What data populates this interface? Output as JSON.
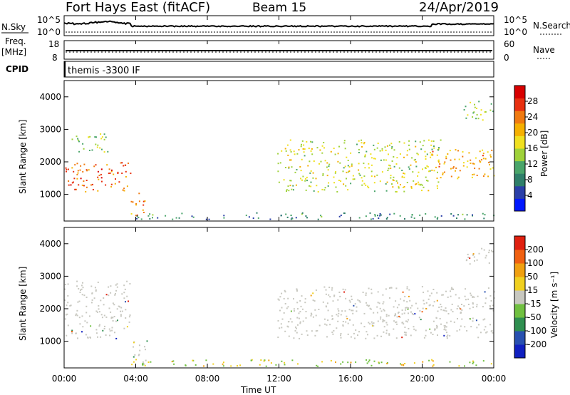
{
  "header": {
    "title": "Fort Hays East (fitACF)",
    "beam": "Beam 15",
    "date": "24/Apr/2019"
  },
  "nsky_panel": {
    "left_label": "N.Sky",
    "right_label": "N.Search",
    "left_ticks": [
      "10^5",
      "10^0"
    ],
    "right_ticks": [
      "10^5",
      "10^0"
    ]
  },
  "freq_panel": {
    "left_label_1": "Freq.",
    "left_label_2": "[MHz]",
    "right_label": "Nave",
    "left_ticks": [
      "18",
      "8"
    ],
    "right_ticks": [
      "60",
      "0"
    ]
  },
  "cpid_panel": {
    "label": "CPID",
    "program": "themis -3300 IF"
  },
  "x_axis": {
    "label": "Time UT",
    "ticks": [
      "00:00",
      "04:00",
      "08:00",
      "12:00",
      "16:00",
      "20:00",
      "00:00"
    ]
  },
  "power_panel": {
    "ylabel": "Slant Range [km]",
    "yticks": [
      "1000",
      "2000",
      "3000",
      "4000"
    ],
    "cbar_label": "Power [dB]",
    "cbar_ticks": [
      "4",
      "8",
      "12",
      "16",
      "20",
      "24",
      "28"
    ],
    "cbar_colors": [
      "#0018ff",
      "#2a3fa8",
      "#2f7f6a",
      "#4aa56a",
      "#9fd23a",
      "#f0e020",
      "#f5b000",
      "#f07a10",
      "#e83010",
      "#d80000"
    ]
  },
  "velocity_panel": {
    "ylabel": "Slant Range [km]",
    "yticks": [
      "1000",
      "2000",
      "3000",
      "4000"
    ],
    "cbar_label": "Velocity [m s⁻¹]",
    "cbar_ticks": [
      "200",
      "100",
      "50",
      "15",
      "-15",
      "-50",
      "-100",
      "-200"
    ],
    "cbar_colors": [
      "#1020c0",
      "#2850b0",
      "#2f8f50",
      "#70c040",
      "#c8c8c0",
      "#f0d020",
      "#f0a010",
      "#f06010",
      "#e02010"
    ]
  },
  "chart_data": {
    "type": "heatmap",
    "x_range_hours": [
      0,
      24
    ],
    "y_range_km": [
      180,
      4500
    ],
    "power_bands": [
      {
        "t_start": 0.0,
        "t_end": 3.7,
        "range_km": [
          1100,
          2000
        ],
        "power_db": 26
      },
      {
        "t_start": 0.3,
        "t_end": 2.5,
        "range_km": [
          2300,
          2900
        ],
        "power_db": 14
      },
      {
        "t_start": 3.6,
        "t_end": 4.6,
        "range_km": [
          300,
          1100
        ],
        "power_db": 24
      },
      {
        "t_start": 4.0,
        "t_end": 24.0,
        "range_km": [
          250,
          450
        ],
        "power_db": 8
      },
      {
        "t_start": 11.9,
        "t_end": 21.0,
        "range_km": [
          1100,
          2700
        ],
        "power_db": 16
      },
      {
        "t_start": 20.5,
        "t_end": 24.0,
        "range_km": [
          1500,
          2400
        ],
        "power_db": 22
      },
      {
        "t_start": 22.3,
        "t_end": 24.0,
        "range_km": [
          3300,
          3900
        ],
        "power_db": 14
      }
    ],
    "velocity_bands": [
      {
        "t_start": 0.0,
        "t_end": 3.7,
        "range_km": [
          1100,
          2900
        ],
        "velocity": 0
      },
      {
        "t_start": 3.6,
        "t_end": 4.6,
        "range_km": [
          300,
          1100
        ],
        "velocity": 0
      },
      {
        "t_start": 4.0,
        "t_end": 24.0,
        "range_km": [
          250,
          450
        ],
        "velocity": 30
      },
      {
        "t_start": 11.9,
        "t_end": 24.0,
        "range_km": [
          1100,
          2700
        ],
        "velocity": 0
      },
      {
        "t_start": 22.3,
        "t_end": 24.0,
        "range_km": [
          3300,
          3900
        ],
        "velocity": 0
      }
    ]
  }
}
